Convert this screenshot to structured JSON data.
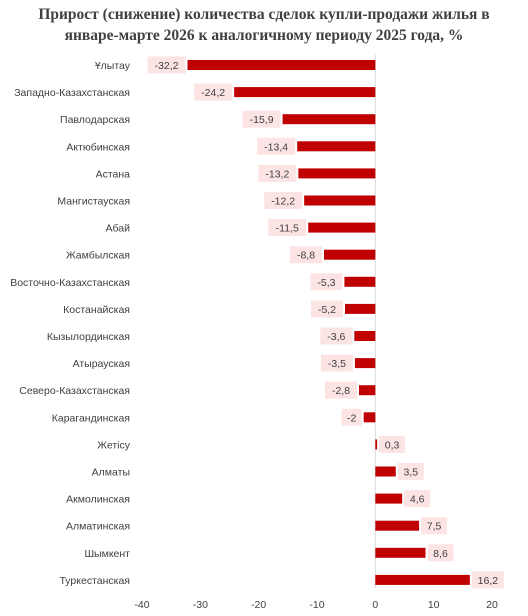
{
  "chart_data": {
    "type": "bar",
    "orientation": "horizontal",
    "title_line1": "Прирост  (снижение) количества сделок купли-продажи жилья в",
    "title_line2": "январе-марте 2026 к аналогичному периоду 2025 года, %",
    "categories": [
      "Ұлытау",
      "Западно-Казахстанская",
      "Павлодарская",
      "Актюбинская",
      "Астана",
      "Мангистауская",
      "Абай",
      "Жамбылская",
      "Восточно-Казахстанская",
      "Костанайская",
      "Кызылординская",
      "Атырауская",
      "Северо-Казахстанская",
      "Карагандинская",
      "Жетісу",
      "Алматы",
      "Акмолинская",
      "Алматинская",
      "Шымкент",
      "Туркестанская"
    ],
    "values": [
      -32.2,
      -24.2,
      -15.9,
      -13.4,
      -13.2,
      -12.2,
      -11.5,
      -8.8,
      -5.3,
      -5.2,
      -3.6,
      -3.5,
      -2.8,
      -2,
      0.3,
      3.5,
      4.6,
      7.5,
      8.6,
      16.2
    ],
    "value_labels": [
      "-32,2",
      "-24,2",
      "-15,9",
      "-13,4",
      "-13,2",
      "-12,2",
      "-11,5",
      "-8,8",
      "-5,3",
      "-5,2",
      "-3,6",
      "-3,5",
      "-2,8",
      "-2",
      "0,3",
      "3,5",
      "4,6",
      "7,5",
      "8,6",
      "16,2"
    ],
    "xlim": [
      -40,
      20
    ],
    "xticks": [
      -40,
      -30,
      -20,
      -10,
      0,
      10,
      20
    ],
    "xtick_labels": [
      "-40",
      "-30",
      "-20",
      "-10",
      "0",
      "10",
      "20"
    ],
    "grid": false,
    "bar_color": "#c00000",
    "label_bg_color": "#fde4e4"
  }
}
